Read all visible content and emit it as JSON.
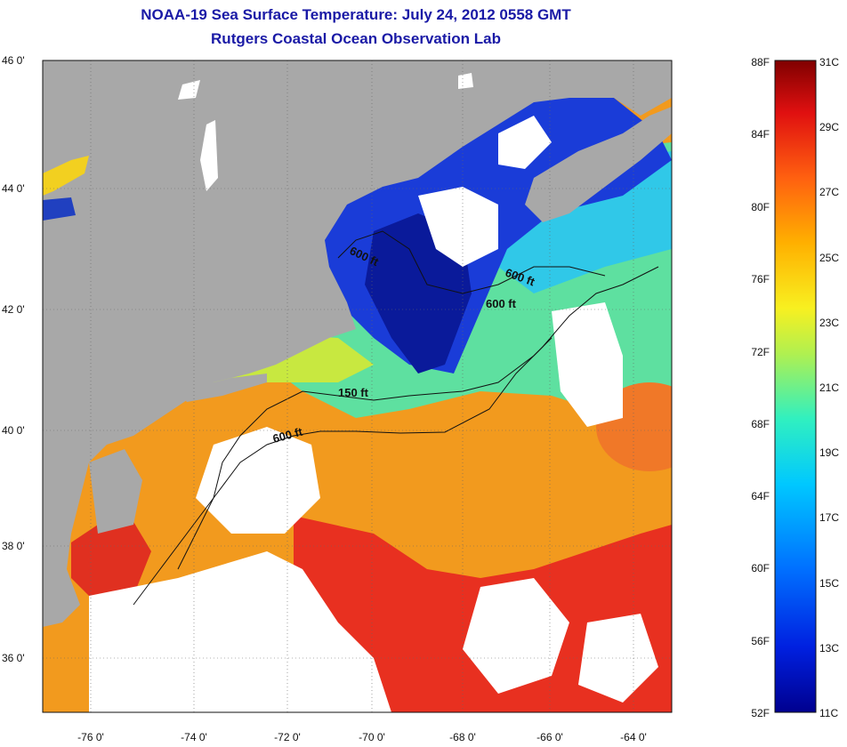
{
  "title": {
    "line1": "NOAA-19 Sea Surface Temperature:  July 24, 2012 0558 GMT",
    "line2": "Rutgers Coastal Ocean Observation Lab"
  },
  "map": {
    "lat_labels": [
      "46 0'",
      "44 0'",
      "42 0'",
      "40 0'",
      "38 0'",
      "36 0'"
    ],
    "lon_labels": [
      "-76 0'",
      "-74 0'",
      "-72 0'",
      "-70 0'",
      "-68 0'",
      "-66 0'",
      "-64 0'"
    ],
    "lat_range": [
      35,
      46
    ],
    "lon_range": [
      -77,
      -62.5
    ],
    "contour_labels": [
      "600 ft",
      "600 ft",
      "600 ft",
      "150 ft",
      "600 ft"
    ],
    "colors": {
      "land": "#a8a8a8",
      "cloud": "#ffffff",
      "warm": "#e8401e",
      "cold": "#1a3cd8"
    }
  },
  "colorbar": {
    "fahrenheit": [
      "88F",
      "84F",
      "80F",
      "76F",
      "72F",
      "68F",
      "64F",
      "60F",
      "56F",
      "52F"
    ],
    "celsius": [
      "31C",
      "29C",
      "27C",
      "25C",
      "23C",
      "21C",
      "19C",
      "17C",
      "15C",
      "13C",
      "11C"
    ],
    "range_c": [
      11,
      31
    ],
    "range_f": [
      52,
      88
    ]
  }
}
